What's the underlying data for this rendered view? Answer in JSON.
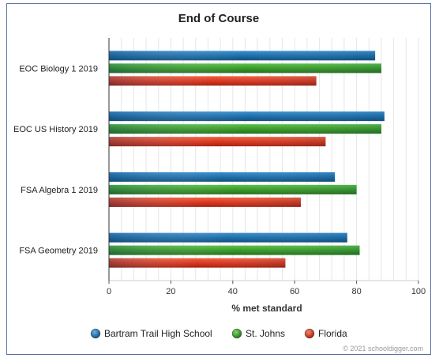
{
  "chart_data": {
    "type": "bar",
    "orientation": "horizontal",
    "title": "End of Course",
    "xlabel": "% met standard",
    "ylabel": "",
    "xlim": [
      0,
      100
    ],
    "xticks": [
      0,
      20,
      40,
      60,
      80,
      100
    ],
    "grid": true,
    "legend_position": "bottom",
    "categories": [
      "EOC Biology 1 2019",
      "EOC US History 2019",
      "FSA Algebra 1 2019",
      "FSA Geometry 2019"
    ],
    "series": [
      {
        "name": "Bartram Trail High School",
        "color": "#1f6fa8",
        "values": [
          86,
          89,
          73,
          77
        ]
      },
      {
        "name": "St. Johns",
        "color": "#3a9a2a",
        "values": [
          88,
          88,
          80,
          81
        ]
      },
      {
        "name": "Florida",
        "color": "#d9381e",
        "values": [
          67,
          70,
          62,
          57
        ]
      }
    ],
    "credit": "© 2021 schooldigger.com"
  }
}
